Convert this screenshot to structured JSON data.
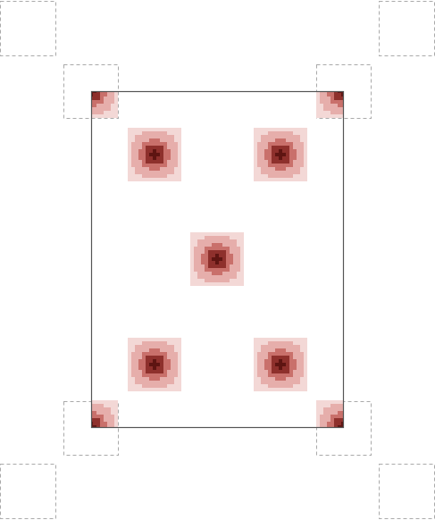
{
  "diagram": {
    "kind": "blob-pattern-in-frame",
    "colors": {
      "background": "#ffffff",
      "frame_stroke": "#555555",
      "dashed_box_stroke": "#aaaaaa",
      "blob_levels": [
        "#f3d8d6",
        "#e6aeab",
        "#c9706b",
        "#8e302c",
        "#5e1512"
      ]
    },
    "frame": {
      "count": 1,
      "style": "solid"
    },
    "dashed_boxes": {
      "count": 8,
      "style": "dashed"
    },
    "blobs": {
      "full_count": 5,
      "clipped_corner_count": 4,
      "cells_per_side": 15,
      "profile": "radial-gradient"
    }
  }
}
